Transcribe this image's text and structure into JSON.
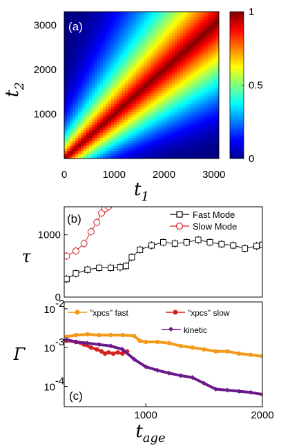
{
  "chart_data": [
    {
      "panel": "a",
      "type": "heatmap",
      "label": "(a)",
      "xlabel": "t",
      "xlabel_sub": "1",
      "ylabel": "t",
      "ylabel_sub": "2",
      "xlim": [
        0,
        3100
      ],
      "ylim": [
        0,
        3300
      ],
      "xticks": [
        "0",
        "1000",
        "2000",
        "3000"
      ],
      "xtick_values": [
        0,
        1000,
        2000,
        3000
      ],
      "yticks": [
        "1000",
        "2000",
        "3000"
      ],
      "ytick_values": [
        1000,
        2000,
        3000
      ],
      "colorbar": {
        "min": 0,
        "max": 1,
        "ticks": [
          "0",
          "0.5",
          "1"
        ],
        "tick_values": [
          0,
          0.5,
          1
        ]
      },
      "colormap": "jet",
      "description_values": {
        "diagonal": 1.0,
        "corner": 0.05
      }
    },
    {
      "panel": "b",
      "type": "scatter",
      "label": "(b)",
      "ylabel": "τ",
      "xlim": [
        300,
        2000
      ],
      "ylim": [
        0,
        1450
      ],
      "yticks": [
        "0",
        "1000"
      ],
      "ytick_values": [
        0,
        1000
      ],
      "legend": {
        "placement": "top-right"
      },
      "series": [
        {
          "name": "Fast Mode",
          "color": "#000000",
          "marker": "square",
          "x": [
            320,
            400,
            500,
            600,
            700,
            780,
            830,
            880,
            950,
            1050,
            1150,
            1250,
            1350,
            1450,
            1550,
            1650,
            1750,
            1850,
            1950,
            2000
          ],
          "y": [
            290,
            380,
            440,
            470,
            470,
            480,
            500,
            640,
            760,
            830,
            880,
            860,
            880,
            920,
            880,
            850,
            830,
            780,
            820,
            840
          ]
        },
        {
          "name": "Slow Mode",
          "color": "#d62020",
          "marker": "circle",
          "x": [
            320,
            400,
            470,
            530,
            580,
            620,
            650,
            680
          ],
          "y": [
            660,
            740,
            860,
            1050,
            1200,
            1350,
            1420,
            1450
          ]
        }
      ]
    },
    {
      "panel": "c",
      "type": "scatter",
      "label": "(c)",
      "ylabel": "Γ",
      "xlabel": "t",
      "xlabel_sub": "age",
      "xlim": [
        300,
        2000
      ],
      "ylim_log": [
        3e-05,
        0.015
      ],
      "yscale": "log",
      "xticks": [
        "1000",
        "2000"
      ],
      "xtick_values": [
        1000,
        2000
      ],
      "yticks": [
        "10",
        "10",
        "10"
      ],
      "ytick_exponents": [
        "-4",
        "-3",
        "-2"
      ],
      "ytick_values": [
        0.0001,
        0.001,
        0.01
      ],
      "legend": {
        "placement": "top"
      },
      "series": [
        {
          "name": "\"xpcs\" fast",
          "color": "#f39a1a",
          "marker": "circle",
          "x": [
            320,
            400,
            500,
            600,
            700,
            800,
            900,
            950,
            1000,
            1100,
            1200,
            1300,
            1400,
            1500,
            1600,
            1700,
            1800,
            1900,
            2000
          ],
          "y": [
            0.0019,
            0.0021,
            0.0022,
            0.0021,
            0.0021,
            0.0021,
            0.002,
            0.0015,
            0.0014,
            0.0014,
            0.0013,
            0.0011,
            0.001,
            0.0009,
            0.0008,
            0.0008,
            0.0007,
            0.00065,
            0.0006
          ]
        },
        {
          "name": "\"xpcs\" slow",
          "color": "#d62020",
          "marker": "circle",
          "x": [
            320,
            400,
            470,
            530,
            580,
            620,
            650,
            680,
            720,
            760,
            800,
            840
          ],
          "y": [
            0.0015,
            0.0014,
            0.0012,
            0.001,
            0.0009,
            0.0008,
            0.0007,
            0.00075,
            0.0007,
            0.00075,
            0.0007,
            0.0008
          ]
        },
        {
          "name": "kinetic",
          "color": "#6a1a8a",
          "marker": "diamond",
          "x": [
            320,
            400,
            500,
            600,
            700,
            800,
            900,
            1000,
            1100,
            1200,
            1300,
            1400,
            1500,
            1600,
            1700,
            1800,
            1900,
            2000
          ],
          "y": [
            0.0016,
            0.0014,
            0.0013,
            0.0012,
            0.0011,
            0.0009,
            0.0005,
            0.00032,
            0.00026,
            0.00022,
            0.00019,
            0.00017,
            0.00012,
            8.5e-05,
            8e-05,
            7.5e-05,
            7e-05,
            6.2e-05
          ]
        }
      ]
    }
  ]
}
